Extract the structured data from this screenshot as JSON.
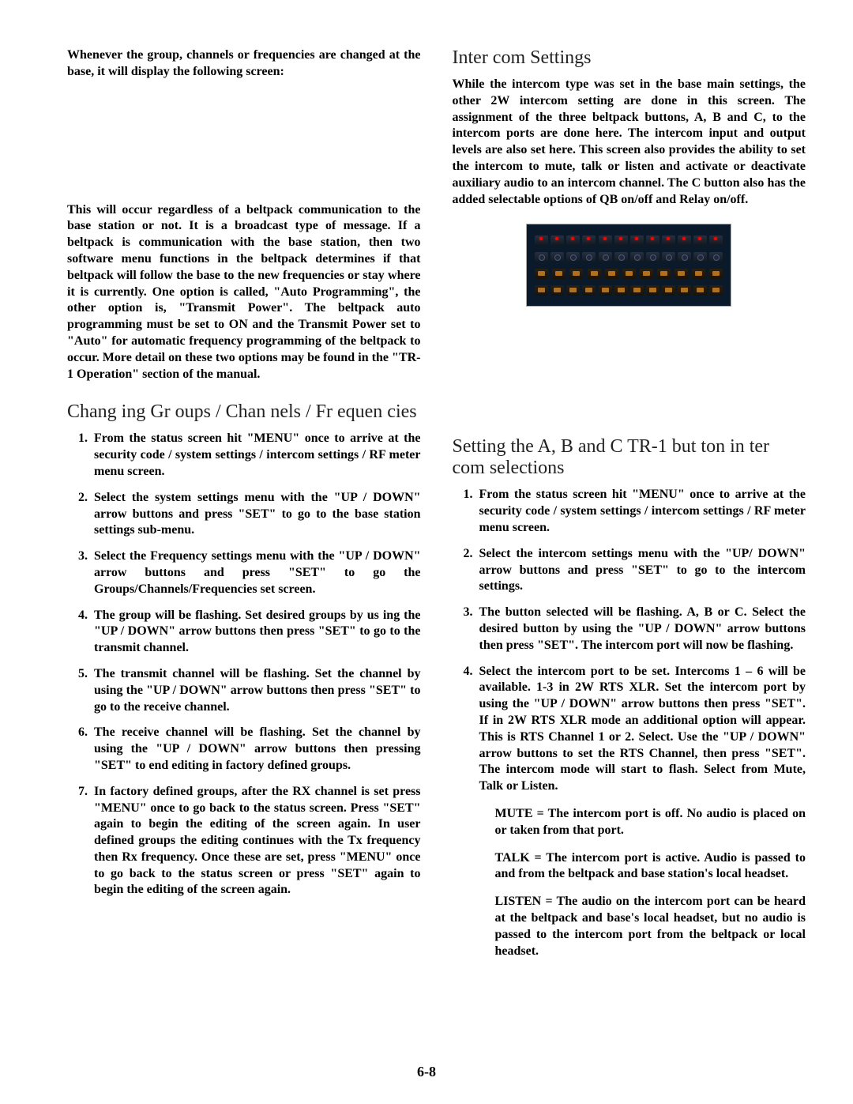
{
  "left": {
    "intro1": "Whenever the group, channels or frequencies are changed at the base, it will display the following screen:",
    "intro2": "This will occur regardless of a beltpack communication to the base station or not. It is a broadcast type of message. If a beltpack is communication with the base station, then two software menu functions in the beltpack determines if that beltpack will follow the base to the new frequencies or stay where it is currently. One option is called, \"Auto Programming\", the other option is, \"Transmit Power\". The beltpack auto programming must be set to ON and the Transmit Power set to \"Auto\" for automatic frequency programming of the beltpack to occur. More detail on these two options may be found in the \"TR-1 Operation\" section of the manual.",
    "heading": "Chang ing Gr oups / Chan nels / Fr equen cies",
    "steps": [
      "From the status screen hit \"MENU\" once to arrive at the security code / system settings / intercom settings / RF meter menu screen.",
      "Select the system settings menu with the \"UP / DOWN\" arrow buttons and press \"SET\" to go to the base station settings sub-menu.",
      "Select the Frequency settings menu with the \"UP / DOWN\" arrow buttons and press \"SET\" to go the Groups/Channels/Frequencies set screen.",
      "The group will be flashing. Set desired groups by us ing the \"UP / DOWN\" arrow buttons then press \"SET\" to go to the transmit channel.",
      "The transmit channel will be flashing. Set the channel by using the \"UP / DOWN\" arrow buttons then press \"SET\" to go to the receive channel.",
      "The receive channel will be flashing. Set the channel by using the \"UP / DOWN\" arrow buttons then pressing \"SET\" to end editing in factory defined groups.",
      "In factory defined groups, after the RX channel is set press \"MENU\" once to go back to the status screen. Press \"SET\" again to begin the editing of the screen again. In user defined groups the editing continues with the Tx frequency then Rx frequency. Once these are set, press \"MENU\" once to go back to the status screen or press \"SET\" again to begin the editing of the screen again."
    ]
  },
  "right": {
    "heading1": "Inter com Settings",
    "intro": "While the intercom type was set in the base main settings, the other 2W intercom setting are done in this screen. The assignment of the three beltpack buttons, A, B and C, to the intercom ports are done here. The intercom input and output levels are also set here. This screen also provides the ability to set the intercom to mute, talk or listen and activate or deactivate auxiliary audio to an intercom channel. The C button also has the added selectable options of QB on/off and Relay on/off.",
    "heading2": "Setting the A, B and C TR-1 but ton in ter com selections",
    "steps": [
      "From the status screen hit \"MENU\" once to arrive at the security code / system settings / intercom settings / RF meter  menu screen.",
      "Select the intercom settings menu with the \"UP/ DOWN\" arrow buttons and press \"SET\" to go to the intercom settings.",
      "The button selected will be flashing. A, B or C. Select the desired button by using the \"UP / DOWN\" arrow buttons then press \"SET\". The intercom port will now be flashing.",
      "Select the intercom port to be set. Intercoms 1 – 6 will be available. 1-3 in 2W RTS XLR. Set the intercom port by using the \"UP / DOWN\" arrow buttons then press \"SET\". If in 2W RTS XLR mode an additional option will appear. This is RTS Channel 1 or 2. Select. Use the \"UP / DOWN\" arrow buttons to set the RTS Channel, then press \"SET\". The intercom mode will start to flash. Select from Mute, Talk or Listen."
    ],
    "modes": {
      "mute": "MUTE = The intercom port is off. No audio is placed on or taken from that port.",
      "talk": "TALK = The intercom port is active. Audio is passed to and from the beltpack and base station's local headset.",
      "listen": "LISTEN = The audio on the intercom port can be heard at the beltpack and base's local headset, but no audio is passed to the intercom port from the beltpack or local headset."
    }
  },
  "page_num": "6-8"
}
